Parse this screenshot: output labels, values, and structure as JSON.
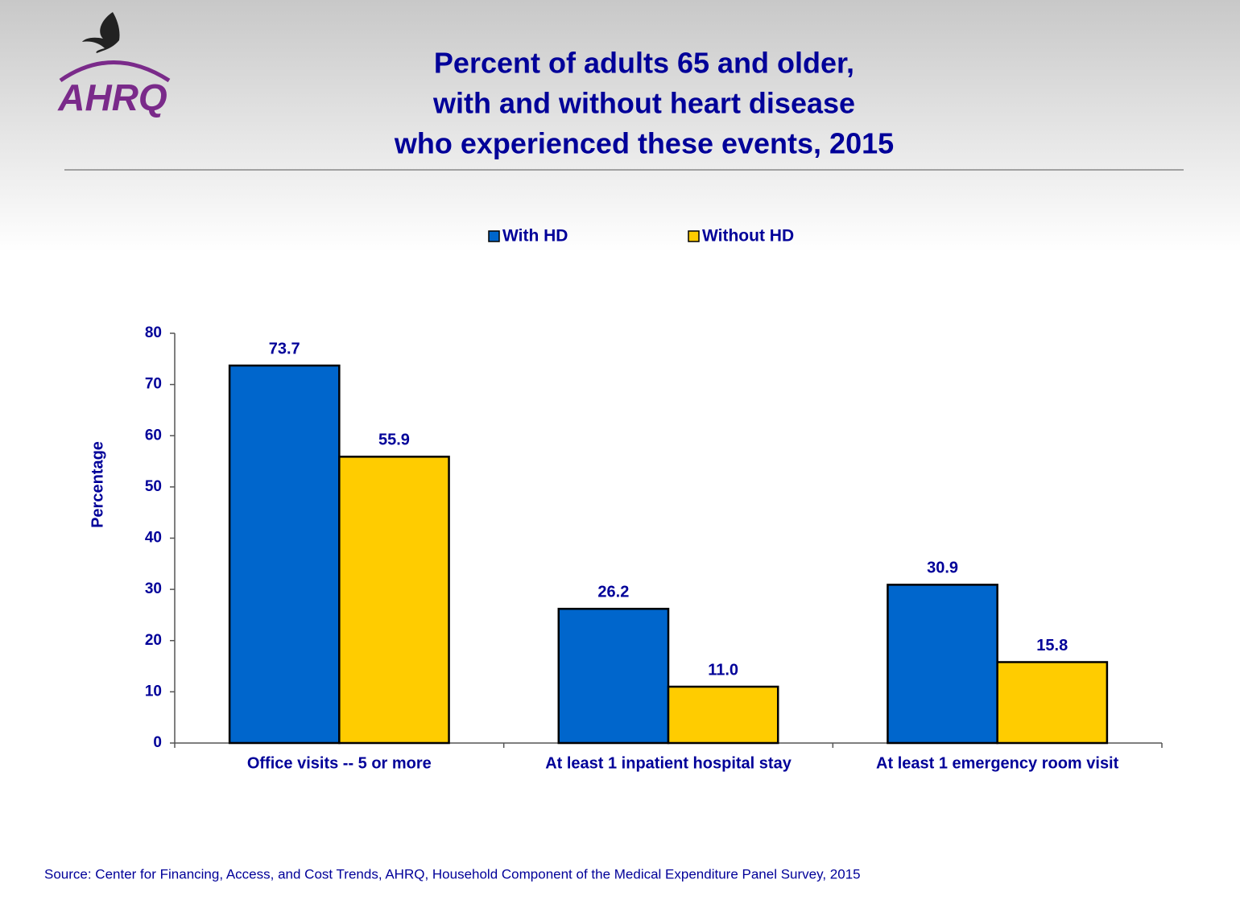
{
  "logo": "AHRQ",
  "source": "Source: Center for Financing, Access, and Cost Trends, AHRQ, Household Component of the Medical Expenditure Panel Survey, 2015",
  "chart_data": {
    "type": "bar",
    "title": [
      "Percent of adults 65 and older,",
      "with and without heart disease",
      "who experienced these events, 2015"
    ],
    "y_label": "Percentage",
    "categories": [
      "Office visits -- 5 or more",
      "At least 1 inpatient hospital stay",
      "At least 1 emergency room visit"
    ],
    "series": [
      {
        "name": "With HD",
        "color": "#0066cc",
        "values": [
          73.7,
          26.2,
          30.9
        ],
        "value_labels": [
          "73.7",
          "26.2",
          "30.9"
        ]
      },
      {
        "name": "Without HD",
        "color": "#ffcc00",
        "values": [
          55.9,
          11.0,
          15.8
        ],
        "value_labels": [
          "55.9",
          "11.0",
          "15.8"
        ]
      }
    ],
    "ylim": [
      0,
      80
    ],
    "yticks": [
      0,
      10,
      20,
      30,
      40,
      50,
      60,
      70,
      80
    ],
    "grid": false,
    "legend": "top"
  }
}
